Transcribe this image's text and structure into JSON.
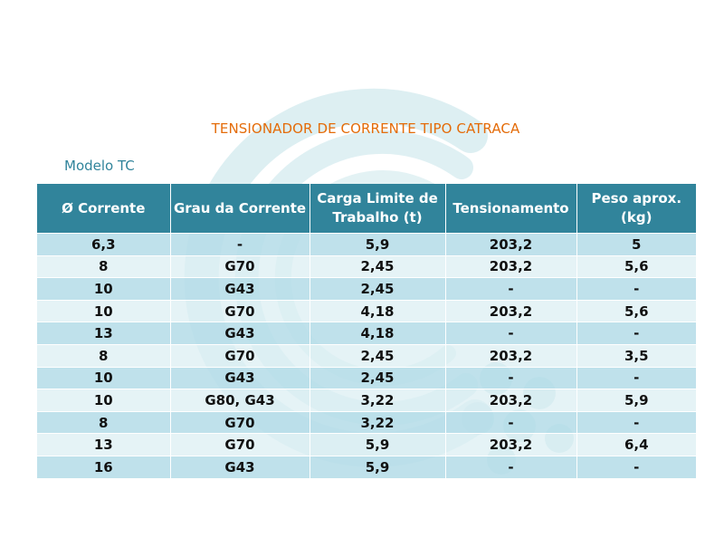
{
  "title": "TENSIONADOR DE CORRENTE TIPO CATRACA",
  "subtitle": "Modelo TC",
  "colors": {
    "title": "#e46c0a",
    "subtitle": "#31849b",
    "header_bg": "#31849b",
    "row_dark": "#b6dde8",
    "row_light": "#dbeef3"
  },
  "table": {
    "headers": [
      "Ø  Corrente",
      "Grau da Corrente",
      "Carga Limite de Trabalho (t)",
      "Tensionamento",
      "Peso aprox. (kg)"
    ],
    "rows": [
      [
        "6,3",
        "-",
        "5,9",
        "203,2",
        "5"
      ],
      [
        "8",
        "G70",
        "2,45",
        "203,2",
        "5,6"
      ],
      [
        "10",
        "G43",
        "2,45",
        "-",
        "-"
      ],
      [
        "10",
        "G70",
        "4,18",
        "203,2",
        "5,6"
      ],
      [
        "13",
        "G43",
        "4,18",
        "-",
        "-"
      ],
      [
        "8",
        "G70",
        "2,45",
        "203,2",
        "3,5"
      ],
      [
        "10",
        "G43",
        "2,45",
        "-",
        "-"
      ],
      [
        "10",
        "G80, G43",
        "3,22",
        "203,2",
        "5,9"
      ],
      [
        "8",
        "G70",
        "3,22",
        "-",
        "-"
      ],
      [
        "13",
        "G70",
        "5,9",
        "203,2",
        "6,4"
      ],
      [
        "16",
        "G43",
        "5,9",
        "-",
        "-"
      ]
    ]
  }
}
